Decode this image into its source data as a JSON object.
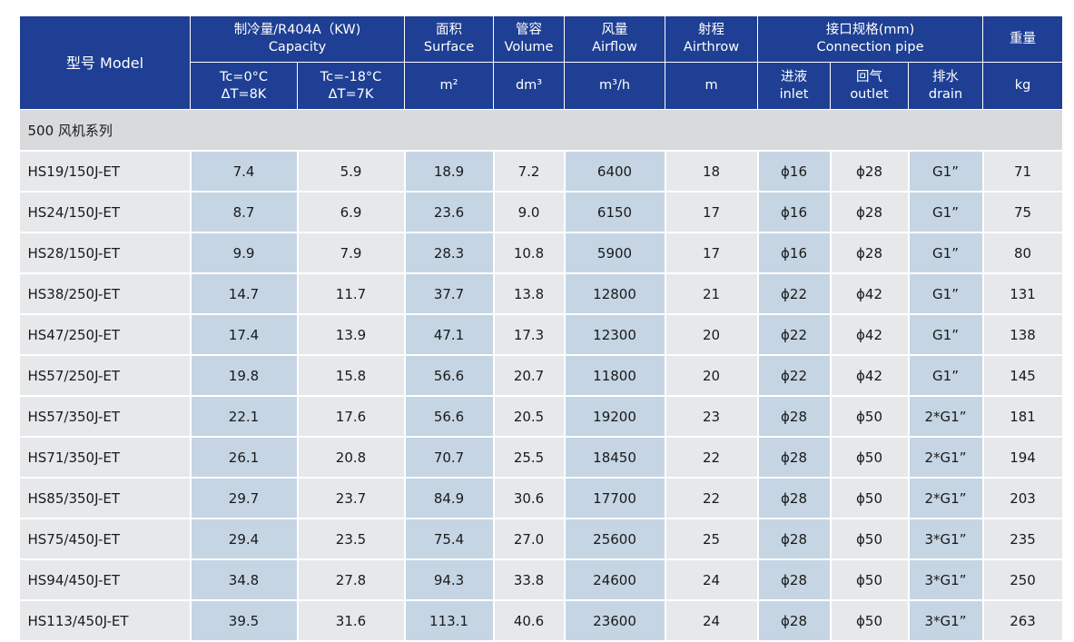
{
  "header": {
    "model": "型号 Model",
    "capacity_cn": "制冷量/R404A（KW)",
    "capacity_en": "Capacity",
    "tc0_line1": "Tc=0°C",
    "tc0_line2": "ΔT=8K",
    "tc18_line1": "Tc=-18°C",
    "tc18_line2": "ΔT=7K",
    "surface_cn": "面积",
    "surface_en": "Surface",
    "surface_unit": "m²",
    "volume_cn": "管容",
    "volume_en": "Volume",
    "volume_unit": "dm³",
    "airflow_cn": "风量",
    "airflow_en": "Airflow",
    "airflow_unit": "m³/h",
    "airthrow_cn": "射程",
    "airthrow_en": "Airthrow",
    "airthrow_unit": "m",
    "conn_cn": "接口规格(mm)",
    "conn_en": "Connection pipe",
    "inlet_cn": "进液",
    "inlet_en": "inlet",
    "outlet_cn": "回气",
    "outlet_en": "outlet",
    "drain_cn": "排水",
    "drain_en": "drain",
    "weight_cn": "重量",
    "weight_unit": "kg"
  },
  "series_label": "500 风机系列",
  "rows": [
    [
      "HS19/150J-ET",
      "7.4",
      "5.9",
      "18.9",
      "7.2",
      "6400",
      "18",
      "ϕ16",
      "ϕ28",
      "G1”",
      "71"
    ],
    [
      "HS24/150J-ET",
      "8.7",
      "6.9",
      "23.6",
      "9.0",
      "6150",
      "17",
      "ϕ16",
      "ϕ28",
      "G1”",
      "75"
    ],
    [
      "HS28/150J-ET",
      "9.9",
      "7.9",
      "28.3",
      "10.8",
      "5900",
      "17",
      "ϕ16",
      "ϕ28",
      "G1”",
      "80"
    ],
    [
      "HS38/250J-ET",
      "14.7",
      "11.7",
      "37.7",
      "13.8",
      "12800",
      "21",
      "ϕ22",
      "ϕ42",
      "G1”",
      "131"
    ],
    [
      "HS47/250J-ET",
      "17.4",
      "13.9",
      "47.1",
      "17.3",
      "12300",
      "20",
      "ϕ22",
      "ϕ42",
      "G1”",
      "138"
    ],
    [
      "HS57/250J-ET",
      "19.8",
      "15.8",
      "56.6",
      "20.7",
      "11800",
      "20",
      "ϕ22",
      "ϕ42",
      "G1”",
      "145"
    ],
    [
      "HS57/350J-ET",
      "22.1",
      "17.6",
      "56.6",
      "20.5",
      "19200",
      "23",
      "ϕ28",
      "ϕ50",
      "2*G1”",
      "181"
    ],
    [
      "HS71/350J-ET",
      "26.1",
      "20.8",
      "70.7",
      "25.5",
      "18450",
      "22",
      "ϕ28",
      "ϕ50",
      "2*G1”",
      "194"
    ],
    [
      "HS85/350J-ET",
      "29.7",
      "23.7",
      "84.9",
      "30.6",
      "17700",
      "22",
      "ϕ28",
      "ϕ50",
      "2*G1”",
      "203"
    ],
    [
      "HS75/450J-ET",
      "29.4",
      "23.5",
      "75.4",
      "27.0",
      "25600",
      "25",
      "ϕ28",
      "ϕ50",
      "3*G1”",
      "235"
    ],
    [
      "HS94/450J-ET",
      "34.8",
      "27.8",
      "94.3",
      "33.8",
      "24600",
      "24",
      "ϕ28",
      "ϕ50",
      "3*G1”",
      "250"
    ],
    [
      "HS113/450J-ET",
      "39.5",
      "31.6",
      "113.1",
      "40.6",
      "23600",
      "24",
      "ϕ28",
      "ϕ50",
      "3*G1”",
      "263"
    ]
  ],
  "colors": {
    "header_bg": "#1e3f93",
    "cell_blue": "#c5d5e4",
    "cell_gray": "#e6e8ea",
    "series_bg": "#d9dadc"
  }
}
